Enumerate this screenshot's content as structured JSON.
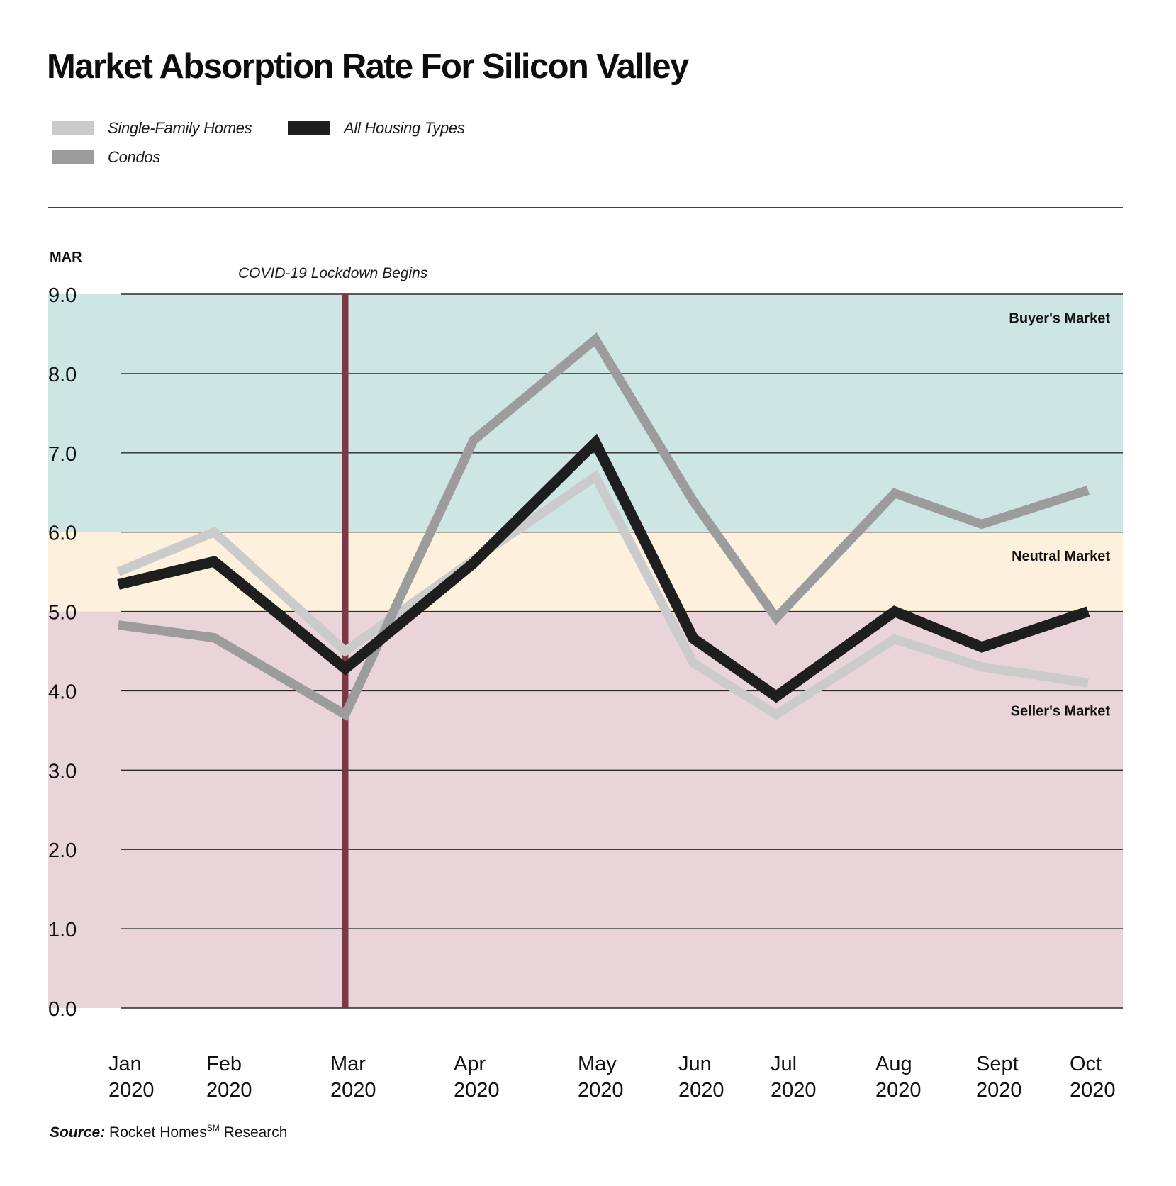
{
  "title": "Market Absorption Rate For Silicon Valley",
  "legend": [
    {
      "label": "Single-Family Homes",
      "color": "#cbcbcb"
    },
    {
      "label": "All Housing Types",
      "color": "#1e1e1e"
    },
    {
      "label": "Condos",
      "color": "#9c9c9c"
    }
  ],
  "colors": {
    "buyers_band": "#cde6e3",
    "neutral_band": "#fdf1dd",
    "sellers_band": "#e9d5d9",
    "lockdown_line": "#7b3845",
    "gridline": "#2a2a2a"
  },
  "annotation": "COVID-19 Lockdown Begins",
  "source": {
    "key": "Source:",
    "org": "Rocket Homes",
    "mark": "SM",
    "rest": "Research"
  },
  "chart_data": {
    "type": "line",
    "title": "Market Absorption Rate For Silicon Valley",
    "xlabel": "",
    "ylabel": "MAR",
    "ylim": [
      0,
      9
    ],
    "yticks": [
      "0.0",
      "1.0",
      "2.0",
      "3.0",
      "4.0",
      "5.0",
      "6.0",
      "7.0",
      "8.0",
      "9.0"
    ],
    "grid": true,
    "legend_position": "top-left",
    "categories": [
      {
        "month": "Jan",
        "year": "2020"
      },
      {
        "month": "Feb",
        "year": "2020"
      },
      {
        "month": "Mar",
        "year": "2020"
      },
      {
        "month": "Apr",
        "year": "2020"
      },
      {
        "month": "May",
        "year": "2020"
      },
      {
        "month": "Jun",
        "year": "2020"
      },
      {
        "month": "Jul",
        "year": "2020"
      },
      {
        "month": "Aug",
        "year": "2020"
      },
      {
        "month": "Sept",
        "year": "2020"
      },
      {
        "month": "Oct",
        "year": "2020"
      }
    ],
    "series": [
      {
        "name": "Single-Family Homes",
        "color": "#cbcbcb",
        "values": [
          5.5,
          6.0,
          4.5,
          5.65,
          6.7,
          4.35,
          3.7,
          4.65,
          4.3,
          4.1
        ]
      },
      {
        "name": "Condos",
        "color": "#9c9c9c",
        "values": [
          4.83,
          4.67,
          3.7,
          7.16,
          8.43,
          6.39,
          4.92,
          6.49,
          6.1,
          6.53
        ]
      },
      {
        "name": "All Housing Types",
        "color": "#1e1e1e",
        "values": [
          5.34,
          5.63,
          4.28,
          5.61,
          7.13,
          4.66,
          3.93,
          5.0,
          4.55,
          5.0
        ]
      }
    ],
    "regions": [
      {
        "label": "Buyer's Market",
        "from": 6.0,
        "to": 9.0
      },
      {
        "label": "Neutral Market",
        "from": 5.0,
        "to": 6.0
      },
      {
        "label": "Seller's Market",
        "from": 0.0,
        "to": 5.0
      }
    ],
    "annotations": [
      {
        "text": "COVID-19 Lockdown Begins",
        "x": "Mar 2020"
      }
    ]
  }
}
